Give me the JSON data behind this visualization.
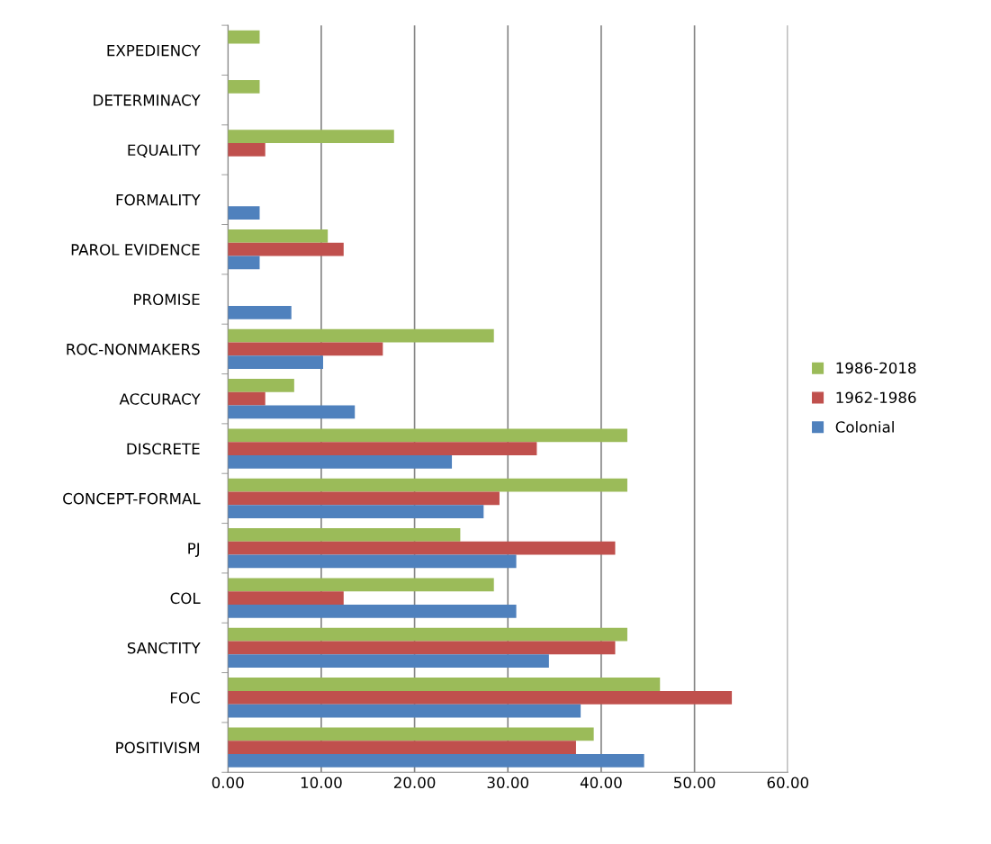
{
  "chart_data": {
    "type": "bar",
    "orientation": "horizontal",
    "categories": [
      "EXPEDIENCY",
      "DETERMINACY",
      "EQUALITY",
      "FORMALITY",
      "PAROL EVIDENCE",
      "PROMISE",
      "ROC-NONMAKERS",
      "ACCURACY",
      "DISCRETE",
      "CONCEPT-FORMAL",
      "PJ",
      "COL",
      "SANCTITY",
      "FOC",
      "POSITIVISM"
    ],
    "series": [
      {
        "name": "1986-2018",
        "color": "#9bbb59",
        "values": [
          3.4,
          3.4,
          17.8,
          null,
          10.7,
          null,
          28.5,
          7.1,
          42.8,
          42.8,
          24.9,
          28.5,
          42.8,
          46.3,
          39.2
        ]
      },
      {
        "name": "1962-1986",
        "color": "#c0504d",
        "values": [
          null,
          null,
          4.0,
          null,
          12.4,
          null,
          16.6,
          4.0,
          33.1,
          29.1,
          41.5,
          12.4,
          41.5,
          54.0,
          37.3
        ]
      },
      {
        "name": "Colonial",
        "color": "#4f81bd",
        "values": [
          null,
          null,
          null,
          3.4,
          3.4,
          6.8,
          10.2,
          13.6,
          24.0,
          27.4,
          30.9,
          30.9,
          34.4,
          37.8,
          44.6
        ]
      }
    ],
    "xlim": [
      0,
      60
    ],
    "xticks": [
      {
        "value": 0,
        "label": "0.00"
      },
      {
        "value": 10,
        "label": "10.00"
      },
      {
        "value": 20,
        "label": "20.00"
      },
      {
        "value": 30,
        "label": "30.00"
      },
      {
        "value": 40,
        "label": "40.00"
      },
      {
        "value": 50,
        "label": "50.00"
      },
      {
        "value": 60,
        "label": "60.00"
      }
    ],
    "grid": "x",
    "legend": "right"
  }
}
